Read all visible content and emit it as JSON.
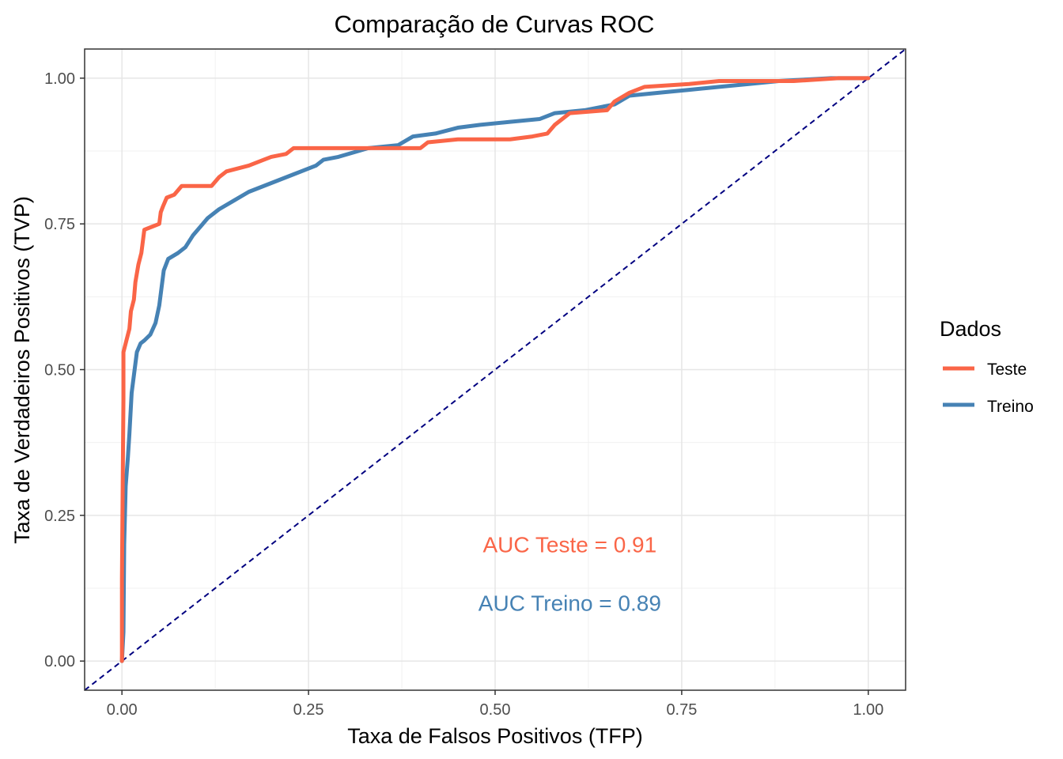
{
  "chart_data": {
    "type": "line",
    "title": "Comparação de Curvas ROC",
    "xlabel": "Taxa de Falsos Positivos (TFP)",
    "ylabel": "Taxa de Verdadeiros Positivos (TVP)",
    "xlim": [
      -0.05,
      1.05
    ],
    "ylim": [
      -0.05,
      1.05
    ],
    "x_ticks": [
      0,
      0.25,
      0.5,
      0.75,
      1
    ],
    "x_tick_labels": [
      "0.00",
      "0.25",
      "0.50",
      "0.75",
      "1.00"
    ],
    "y_ticks": [
      0,
      0.25,
      0.5,
      0.75,
      1
    ],
    "y_tick_labels": [
      "0.00",
      "0.25",
      "0.50",
      "0.75",
      "1.00"
    ],
    "grid": true,
    "legend": {
      "title": "Dados",
      "position": "right"
    },
    "reference_line": {
      "from": [
        0,
        0
      ],
      "to": [
        1,
        1
      ],
      "style": "dashed",
      "color": "#000080"
    },
    "series": [
      {
        "name": "Teste",
        "color": "#FA6547",
        "points": [
          [
            0,
            0
          ],
          [
            0,
            0.14
          ],
          [
            0.001,
            0.3
          ],
          [
            0.002,
            0.45
          ],
          [
            0.002,
            0.53
          ],
          [
            0.006,
            0.55
          ],
          [
            0.01,
            0.57
          ],
          [
            0.012,
            0.6
          ],
          [
            0.016,
            0.62
          ],
          [
            0.018,
            0.65
          ],
          [
            0.022,
            0.68
          ],
          [
            0.026,
            0.7
          ],
          [
            0.03,
            0.74
          ],
          [
            0.04,
            0.745
          ],
          [
            0.05,
            0.75
          ],
          [
            0.052,
            0.77
          ],
          [
            0.055,
            0.78
          ],
          [
            0.06,
            0.795
          ],
          [
            0.07,
            0.8
          ],
          [
            0.08,
            0.815
          ],
          [
            0.1,
            0.815
          ],
          [
            0.12,
            0.815
          ],
          [
            0.13,
            0.83
          ],
          [
            0.14,
            0.84
          ],
          [
            0.17,
            0.85
          ],
          [
            0.19,
            0.86
          ],
          [
            0.2,
            0.865
          ],
          [
            0.22,
            0.87
          ],
          [
            0.23,
            0.88
          ],
          [
            0.3,
            0.88
          ],
          [
            0.35,
            0.88
          ],
          [
            0.4,
            0.88
          ],
          [
            0.41,
            0.89
          ],
          [
            0.45,
            0.895
          ],
          [
            0.52,
            0.895
          ],
          [
            0.55,
            0.9
          ],
          [
            0.57,
            0.905
          ],
          [
            0.58,
            0.92
          ],
          [
            0.6,
            0.94
          ],
          [
            0.65,
            0.945
          ],
          [
            0.66,
            0.96
          ],
          [
            0.68,
            0.975
          ],
          [
            0.7,
            0.985
          ],
          [
            0.76,
            0.99
          ],
          [
            0.8,
            0.995
          ],
          [
            0.9,
            0.995
          ],
          [
            0.96,
            1.0
          ],
          [
            1.0,
            1.0
          ]
        ]
      },
      {
        "name": "Treino",
        "color": "#4682B4",
        "points": [
          [
            0,
            0
          ],
          [
            0.002,
            0.05
          ],
          [
            0.003,
            0.2
          ],
          [
            0.005,
            0.3
          ],
          [
            0.008,
            0.35
          ],
          [
            0.01,
            0.39
          ],
          [
            0.013,
            0.46
          ],
          [
            0.017,
            0.5
          ],
          [
            0.02,
            0.53
          ],
          [
            0.025,
            0.545
          ],
          [
            0.03,
            0.55
          ],
          [
            0.038,
            0.56
          ],
          [
            0.045,
            0.58
          ],
          [
            0.05,
            0.61
          ],
          [
            0.053,
            0.64
          ],
          [
            0.056,
            0.67
          ],
          [
            0.062,
            0.69
          ],
          [
            0.075,
            0.7
          ],
          [
            0.085,
            0.71
          ],
          [
            0.095,
            0.73
          ],
          [
            0.105,
            0.745
          ],
          [
            0.115,
            0.76
          ],
          [
            0.13,
            0.775
          ],
          [
            0.15,
            0.79
          ],
          [
            0.17,
            0.805
          ],
          [
            0.19,
            0.815
          ],
          [
            0.21,
            0.825
          ],
          [
            0.23,
            0.835
          ],
          [
            0.26,
            0.85
          ],
          [
            0.27,
            0.86
          ],
          [
            0.29,
            0.865
          ],
          [
            0.33,
            0.88
          ],
          [
            0.37,
            0.885
          ],
          [
            0.39,
            0.9
          ],
          [
            0.42,
            0.905
          ],
          [
            0.45,
            0.915
          ],
          [
            0.48,
            0.92
          ],
          [
            0.52,
            0.925
          ],
          [
            0.56,
            0.93
          ],
          [
            0.58,
            0.94
          ],
          [
            0.62,
            0.945
          ],
          [
            0.66,
            0.955
          ],
          [
            0.68,
            0.97
          ],
          [
            0.72,
            0.975
          ],
          [
            0.76,
            0.98
          ],
          [
            0.8,
            0.985
          ],
          [
            0.84,
            0.99
          ],
          [
            0.88,
            0.995
          ],
          [
            0.95,
            1.0
          ],
          [
            1.0,
            1.0
          ]
        ]
      }
    ],
    "annotations": [
      {
        "text": "AUC Teste = 0.91",
        "x": 0.6,
        "y": 0.2,
        "color": "#FA6547"
      },
      {
        "text": "AUC Treino = 0.89",
        "x": 0.6,
        "y": 0.1,
        "color": "#4682B4"
      }
    ]
  }
}
